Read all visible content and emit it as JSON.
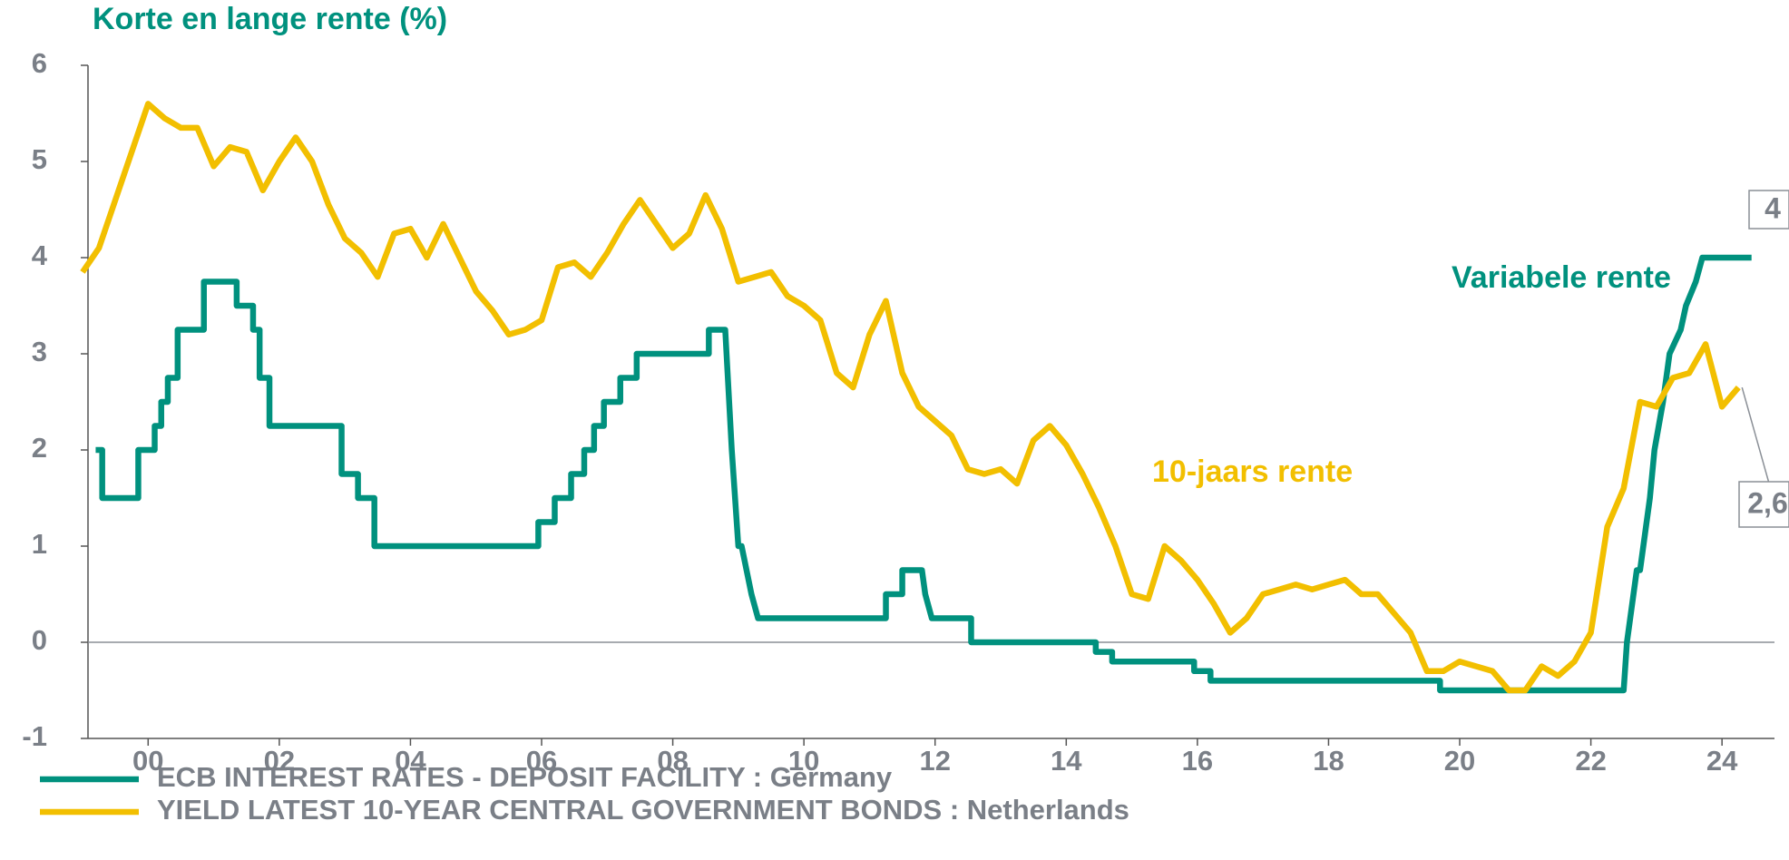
{
  "chart_data": {
    "type": "line",
    "title": "Korte en lange rente (%)",
    "xlim": [
      1999,
      2024.8
    ],
    "ylim": [
      -1,
      6
    ],
    "yticks": [
      -1,
      0,
      1,
      2,
      3,
      4,
      5,
      6
    ],
    "xticks": [
      {
        "value": 2000,
        "label": "00"
      },
      {
        "value": 2002,
        "label": "02"
      },
      {
        "value": 2004,
        "label": "04"
      },
      {
        "value": 2006,
        "label": "06"
      },
      {
        "value": 2008,
        "label": "08"
      },
      {
        "value": 2010,
        "label": "10"
      },
      {
        "value": 2012,
        "label": "12"
      },
      {
        "value": 2014,
        "label": "14"
      },
      {
        "value": 2016,
        "label": "16"
      },
      {
        "value": 2018,
        "label": "18"
      },
      {
        "value": 2020,
        "label": "20"
      },
      {
        "value": 2022,
        "label": "22"
      },
      {
        "value": 2024,
        "label": "24"
      }
    ],
    "grid": false,
    "legend": "bottom",
    "series": [
      {
        "name": "ECB INTEREST RATES - DEPOSIT FACILITY : Germany",
        "color": "#00917e",
        "label": "Variabele rente",
        "end_label": "4",
        "x": [
          1999.2,
          1999.3,
          1999.3,
          1999.85,
          1999.85,
          2000.1,
          2000.1,
          2000.2,
          2000.2,
          2000.3,
          2000.3,
          2000.45,
          2000.45,
          2000.85,
          2000.85,
          2001.35,
          2001.35,
          2001.6,
          2001.6,
          2001.7,
          2001.7,
          2001.85,
          2001.85,
          2002.95,
          2002.95,
          2003.2,
          2003.2,
          2003.45,
          2003.45,
          2005.95,
          2005.95,
          2006.2,
          2006.2,
          2006.45,
          2006.45,
          2006.65,
          2006.65,
          2006.8,
          2006.8,
          2006.95,
          2006.95,
          2007.2,
          2007.2,
          2007.45,
          2007.45,
          2008.55,
          2008.55,
          2008.8,
          2008.9,
          2009.0,
          2009.05,
          2009.2,
          2009.3,
          2011.25,
          2011.25,
          2011.5,
          2011.5,
          2011.8,
          2011.85,
          2011.95,
          2012.55,
          2012.55,
          2014.45,
          2014.45,
          2014.7,
          2014.7,
          2015.95,
          2015.95,
          2016.2,
          2016.2,
          2019.7,
          2019.7,
          2022.5,
          2022.55,
          2022.7,
          2022.75,
          2022.9,
          2022.97,
          2023.1,
          2023.2,
          2023.37,
          2023.45,
          2023.6,
          2023.7,
          2024.45
        ],
        "values": [
          2.0,
          2.0,
          1.5,
          1.5,
          2.0,
          2.0,
          2.25,
          2.25,
          2.5,
          2.5,
          2.75,
          2.75,
          3.25,
          3.25,
          3.75,
          3.75,
          3.5,
          3.5,
          3.25,
          3.25,
          2.75,
          2.75,
          2.25,
          2.25,
          1.75,
          1.75,
          1.5,
          1.5,
          1.0,
          1.0,
          1.25,
          1.25,
          1.5,
          1.5,
          1.75,
          1.75,
          2.0,
          2.0,
          2.25,
          2.25,
          2.5,
          2.5,
          2.75,
          2.75,
          3.0,
          3.0,
          3.25,
          3.25,
          2.0,
          1.0,
          1.0,
          0.5,
          0.25,
          0.25,
          0.5,
          0.5,
          0.75,
          0.75,
          0.5,
          0.25,
          0.25,
          0,
          0,
          -0.1,
          -0.1,
          -0.2,
          -0.2,
          -0.3,
          -0.3,
          -0.4,
          -0.4,
          -0.5,
          -0.5,
          0,
          0.75,
          0.75,
          1.5,
          2.0,
          2.5,
          3.0,
          3.25,
          3.5,
          3.75,
          4.0,
          4.0
        ]
      },
      {
        "name": "YIELD LATEST 10-YEAR CENTRAL GOVERNMENT BONDS : Netherlands",
        "color": "#f2bf00",
        "label": "10-jaars rente",
        "end_label": "2,6",
        "x": [
          1999.0,
          1999.25,
          1999.5,
          1999.75,
          2000.0,
          2000.25,
          2000.5,
          2000.75,
          2001.0,
          2001.25,
          2001.5,
          2001.75,
          2002.0,
          2002.25,
          2002.5,
          2002.75,
          2003.0,
          2003.25,
          2003.5,
          2003.75,
          2004.0,
          2004.25,
          2004.5,
          2004.75,
          2005.0,
          2005.25,
          2005.5,
          2005.75,
          2006.0,
          2006.25,
          2006.5,
          2006.75,
          2007.0,
          2007.25,
          2007.5,
          2007.75,
          2008.0,
          2008.25,
          2008.5,
          2008.75,
          2009.0,
          2009.25,
          2009.5,
          2009.75,
          2010.0,
          2010.25,
          2010.5,
          2010.75,
          2011.0,
          2011.25,
          2011.5,
          2011.75,
          2012.0,
          2012.25,
          2012.5,
          2012.75,
          2013.0,
          2013.25,
          2013.5,
          2013.75,
          2014.0,
          2014.25,
          2014.5,
          2014.75,
          2015.0,
          2015.25,
          2015.5,
          2015.75,
          2016.0,
          2016.25,
          2016.5,
          2016.75,
          2017.0,
          2017.25,
          2017.5,
          2017.75,
          2018.0,
          2018.25,
          2018.5,
          2018.75,
          2019.0,
          2019.25,
          2019.5,
          2019.75,
          2020.0,
          2020.25,
          2020.5,
          2020.75,
          2021.0,
          2021.25,
          2021.5,
          2021.75,
          2022.0,
          2022.25,
          2022.5,
          2022.75,
          2023.0,
          2023.25,
          2023.5,
          2023.75,
          2024.0,
          2024.25
        ],
        "values": [
          3.85,
          4.1,
          4.6,
          5.1,
          5.6,
          5.45,
          5.35,
          5.35,
          4.95,
          5.15,
          5.1,
          4.7,
          5.0,
          5.25,
          5.0,
          4.55,
          4.2,
          4.05,
          3.8,
          4.25,
          4.3,
          4.0,
          4.35,
          4.0,
          3.65,
          3.45,
          3.2,
          3.25,
          3.35,
          3.9,
          3.95,
          3.8,
          4.05,
          4.35,
          4.6,
          4.35,
          4.1,
          4.25,
          4.65,
          4.3,
          3.75,
          3.8,
          3.85,
          3.6,
          3.5,
          3.35,
          2.8,
          2.65,
          3.2,
          3.55,
          2.8,
          2.45,
          2.3,
          2.15,
          1.8,
          1.75,
          1.8,
          1.65,
          2.1,
          2.25,
          2.05,
          1.75,
          1.4,
          1.0,
          0.5,
          0.45,
          1.0,
          0.85,
          0.65,
          0.4,
          0.1,
          0.25,
          0.5,
          0.55,
          0.6,
          0.55,
          0.6,
          0.65,
          0.5,
          0.5,
          0.3,
          0.1,
          -0.3,
          -0.3,
          -0.2,
          -0.25,
          -0.3,
          -0.5,
          -0.5,
          -0.25,
          -0.35,
          -0.2,
          0.1,
          1.2,
          1.6,
          2.5,
          2.45,
          2.75,
          2.8,
          3.1,
          2.45,
          2.65
        ]
      }
    ]
  }
}
